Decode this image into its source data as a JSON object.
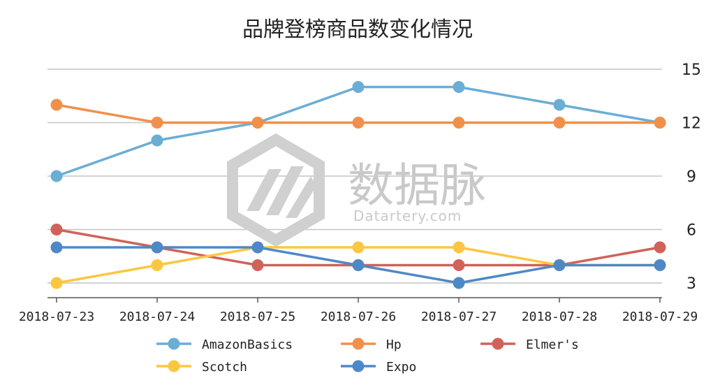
{
  "chart_data": {
    "type": "line",
    "title": "品牌登榜商品数变化情况",
    "categories": [
      "2018-07-23",
      "2018-07-24",
      "2018-07-25",
      "2018-07-26",
      "2018-07-27",
      "2018-07-28",
      "2018-07-29"
    ],
    "series": [
      {
        "name": "AmazonBasics",
        "color": "#6aaed6",
        "values": [
          9,
          11,
          12,
          14,
          14,
          13,
          12
        ]
      },
      {
        "name": "Hp",
        "color": "#f0904a",
        "values": [
          13,
          12,
          12,
          12,
          12,
          12,
          12
        ]
      },
      {
        "name": "Elmer's",
        "color": "#d0625a",
        "values": [
          6,
          5,
          4,
          4,
          4,
          4,
          5
        ]
      },
      {
        "name": "Scotch",
        "color": "#fcc640",
        "values": [
          3,
          4,
          5,
          5,
          5,
          4,
          4
        ]
      },
      {
        "name": "Expo",
        "color": "#4f88c6",
        "values": [
          5,
          5,
          5,
          4,
          3,
          4,
          4
        ]
      }
    ],
    "ylim": [
      2.2,
      15
    ],
    "yticks": [
      3,
      6,
      9,
      12,
      15
    ],
    "y_axis_side": "right",
    "grid": true,
    "legend": "bottom-center"
  },
  "watermark": {
    "text_cn": "数据脉",
    "text_en": "Datartery.com"
  }
}
